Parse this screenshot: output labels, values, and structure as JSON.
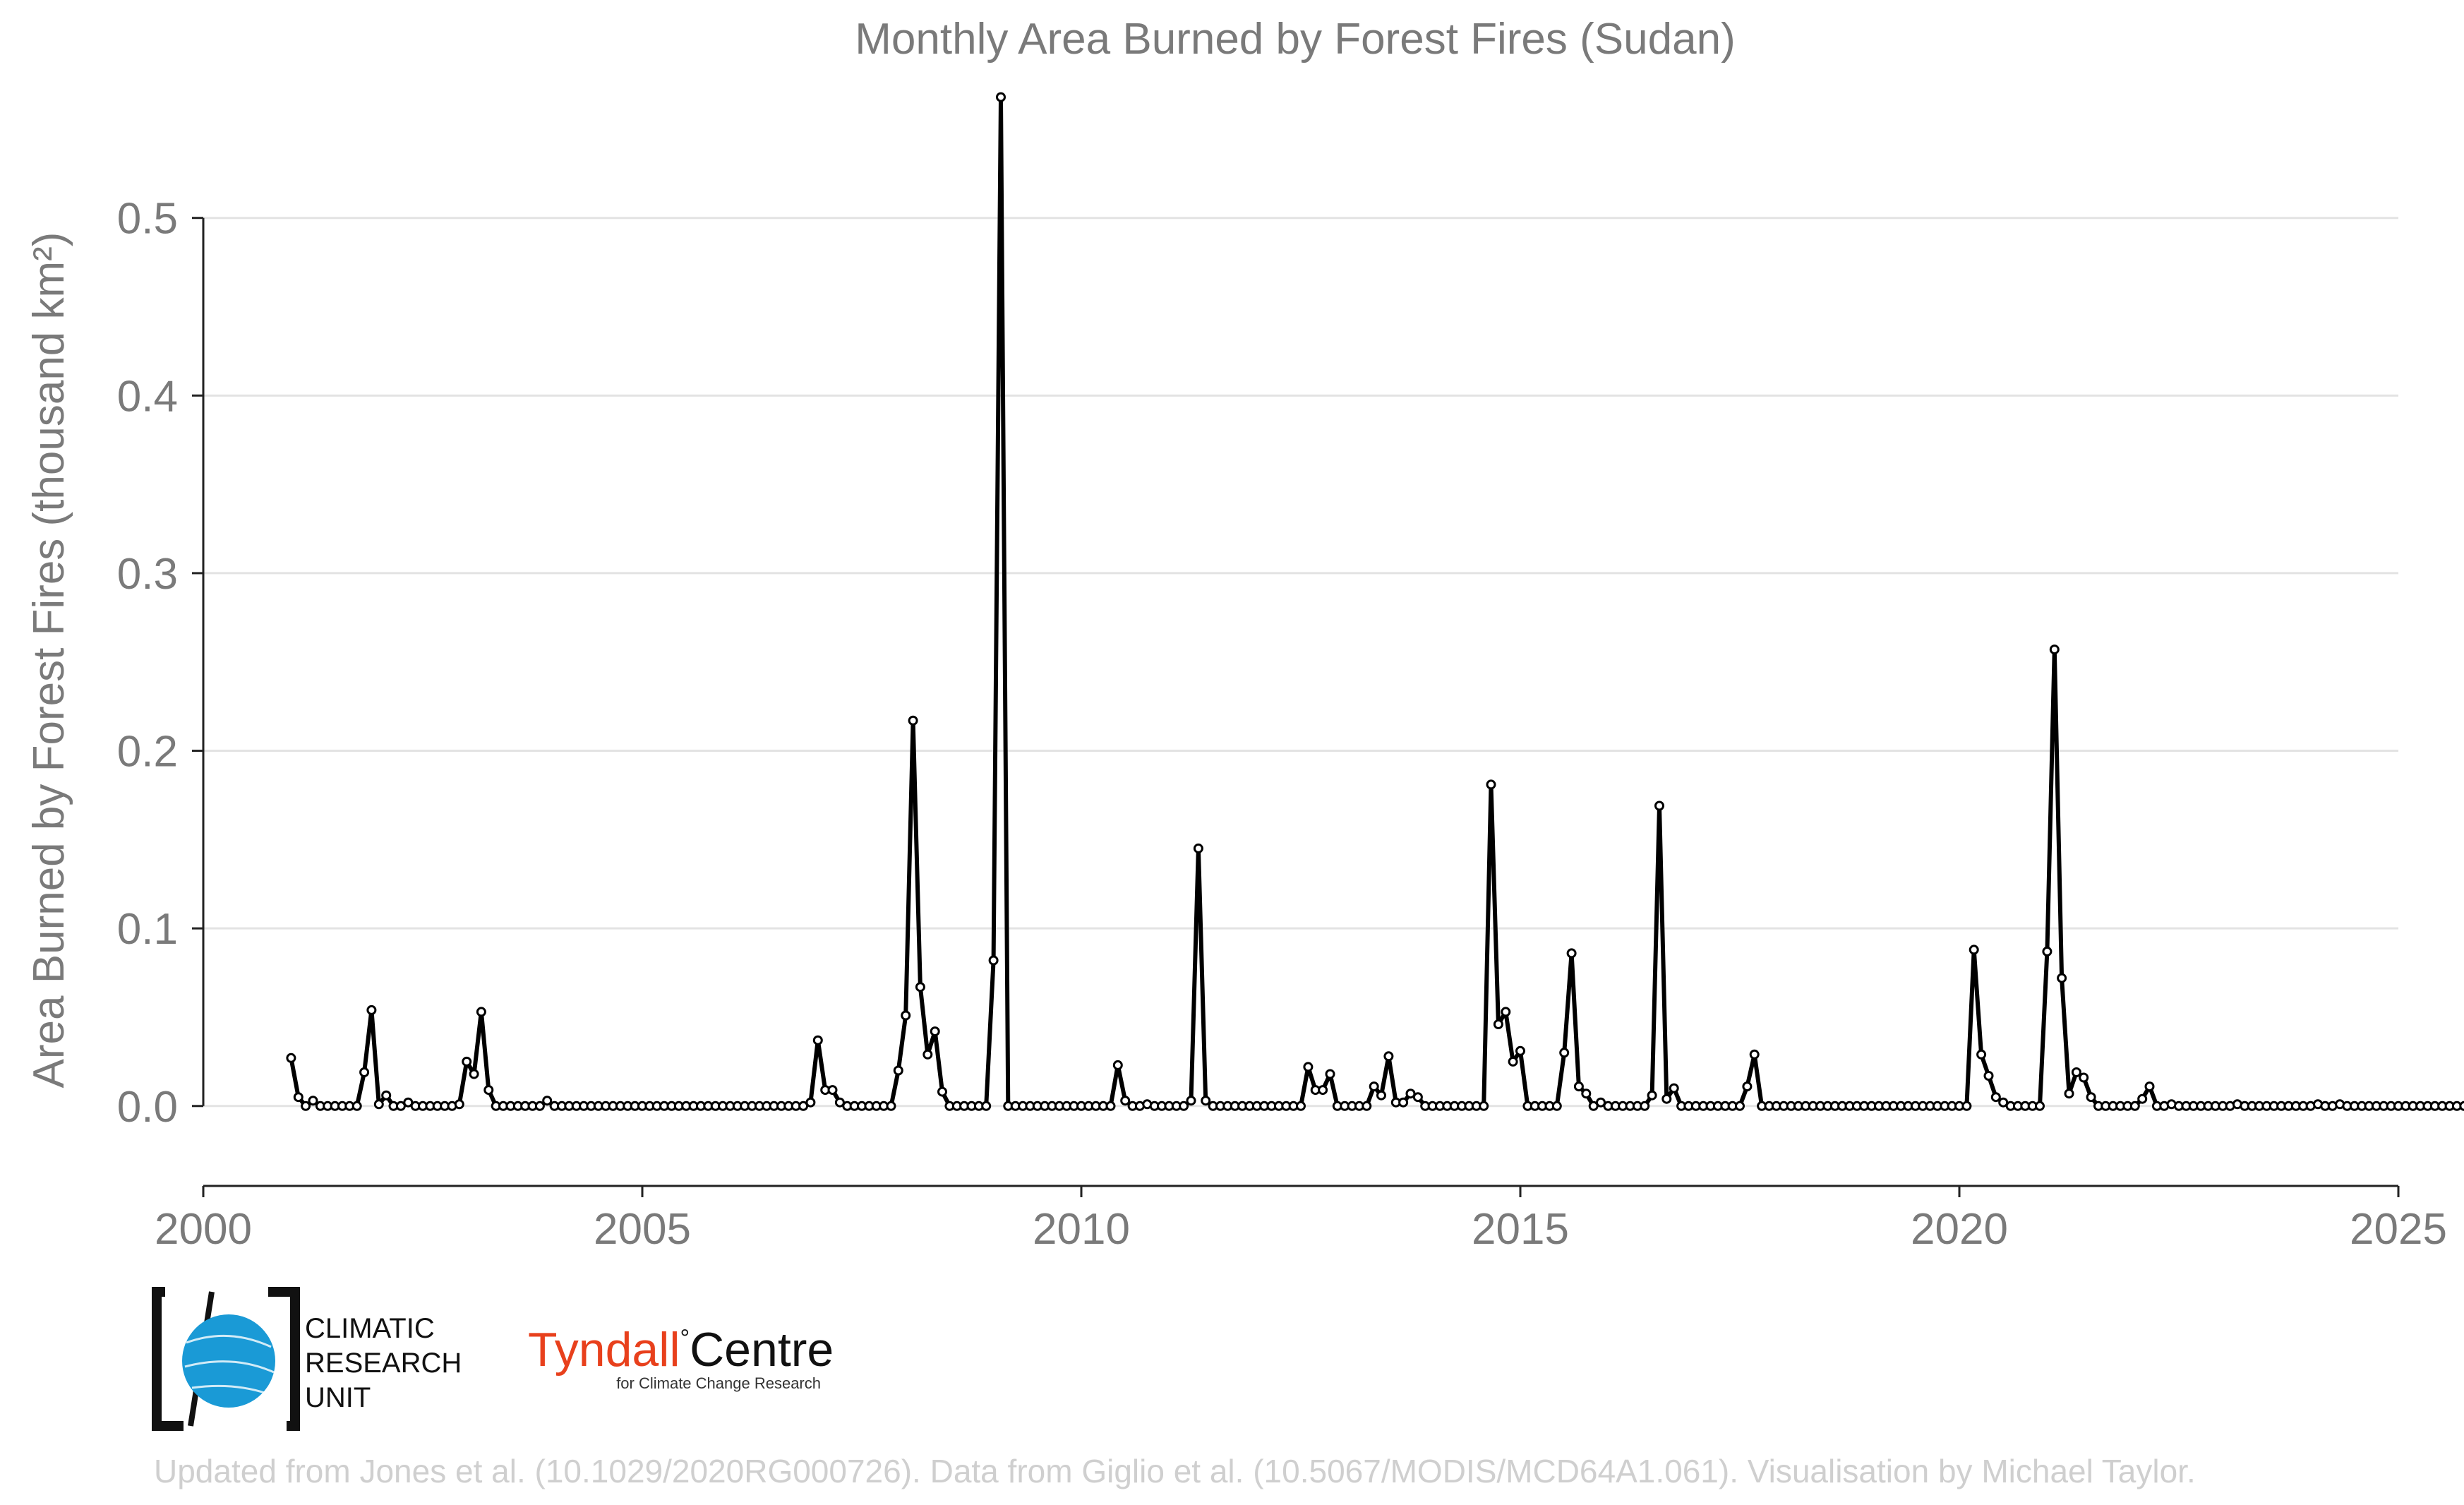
{
  "chart_data": {
    "type": "line",
    "title": "Monthly Area Burned by Forest Fires (Sudan)",
    "ylabel": "Area Burned by Forest Fires (thousand km²)",
    "xlabel": "",
    "xlim": [
      2000,
      2025
    ],
    "ylim": [
      -0.045,
      0.575
    ],
    "x_ticks": [
      2000,
      2005,
      2010,
      2015,
      2020,
      2025
    ],
    "y_ticks": [
      0.0,
      0.1,
      0.2,
      0.3,
      0.4,
      0.5
    ],
    "y_tick_labels": [
      "0.0",
      "0.1",
      "0.2",
      "0.3",
      "0.4",
      "0.5"
    ],
    "grid": "horizontal",
    "series_color": "#000000",
    "start": "2001-01",
    "frequency": "monthly",
    "values": [
      0.027,
      0.005,
      0.0,
      0.003,
      0.0,
      0.0,
      0.0,
      0.0,
      0.0,
      0.0,
      0.019,
      0.054,
      0.001,
      0.006,
      0.0,
      0.0,
      0.002,
      0.0,
      0.0,
      0.0,
      0.0,
      0.0,
      0.0,
      0.001,
      0.025,
      0.018,
      0.053,
      0.009,
      0.0,
      0.0,
      0.0,
      0.0,
      0.0,
      0.0,
      0.0,
      0.003,
      0.0,
      0.0,
      0.0,
      0.0,
      0.0,
      0.0,
      0.0,
      0.0,
      0.0,
      0.0,
      0.0,
      0.0,
      0.0,
      0.0,
      0.0,
      0.0,
      0.0,
      0.0,
      0.0,
      0.0,
      0.0,
      0.0,
      0.0,
      0.0,
      0.0,
      0.0,
      0.0,
      0.0,
      0.0,
      0.0,
      0.0,
      0.0,
      0.0,
      0.0,
      0.0,
      0.002,
      0.037,
      0.009,
      0.009,
      0.002,
      0.0,
      0.0,
      0.0,
      0.0,
      0.0,
      0.0,
      0.0,
      0.02,
      0.051,
      0.217,
      0.067,
      0.029,
      0.042,
      0.008,
      0.0,
      0.0,
      0.0,
      0.0,
      0.0,
      0.0,
      0.082,
      0.568,
      0.0,
      0.0,
      0.0,
      0.0,
      0.0,
      0.0,
      0.0,
      0.0,
      0.0,
      0.0,
      0.0,
      0.0,
      0.0,
      0.0,
      0.0,
      0.023,
      0.003,
      0.0,
      0.0,
      0.001,
      0.0,
      0.0,
      0.0,
      0.0,
      0.0,
      0.003,
      0.145,
      0.003,
      0.0,
      0.0,
      0.0,
      0.0,
      0.0,
      0.0,
      0.0,
      0.0,
      0.0,
      0.0,
      0.0,
      0.0,
      0.0,
      0.022,
      0.009,
      0.009,
      0.018,
      0.0,
      0.0,
      0.0,
      0.0,
      0.0,
      0.011,
      0.006,
      0.028,
      0.002,
      0.002,
      0.007,
      0.005,
      0.0,
      0.0,
      0.0,
      0.0,
      0.0,
      0.0,
      0.0,
      0.0,
      0.0,
      0.181,
      0.046,
      0.053,
      0.025,
      0.031,
      0.0,
      0.0,
      0.0,
      0.0,
      0.0,
      0.03,
      0.086,
      0.011,
      0.007,
      0.0,
      0.002,
      0.0,
      0.0,
      0.0,
      0.0,
      0.0,
      0.0,
      0.006,
      0.169,
      0.004,
      0.01,
      0.0,
      0.0,
      0.0,
      0.0,
      0.0,
      0.0,
      0.0,
      0.0,
      0.0,
      0.011,
      0.029,
      0.0,
      0.0,
      0.0,
      0.0,
      0.0,
      0.0,
      0.0,
      0.0,
      0.0,
      0.0,
      0.0,
      0.0,
      0.0,
      0.0,
      0.0,
      0.0,
      0.0,
      0.0,
      0.0,
      0.0,
      0.0,
      0.0,
      0.0,
      0.0,
      0.0,
      0.0,
      0.0,
      0.0,
      0.0,
      0.088,
      0.029,
      0.017,
      0.005,
      0.002,
      0.0,
      0.0,
      0.0,
      0.0,
      0.0,
      0.087,
      0.257,
      0.072,
      0.007,
      0.019,
      0.016,
      0.005,
      0.0,
      0.0,
      0.0,
      0.0,
      0.0,
      0.0,
      0.004,
      0.011,
      0.0,
      0.0,
      0.001,
      0.0,
      0.0,
      0.0,
      0.0,
      0.0,
      0.0,
      0.0,
      0.0,
      0.001,
      0.0,
      0.0,
      0.0,
      0.0,
      0.0,
      0.0,
      0.0,
      0.0,
      0.0,
      0.0,
      0.001,
      0.0,
      0.0,
      0.001,
      0.0,
      0.0,
      0.0,
      0.0,
      0.0,
      0.0,
      0.0,
      0.0,
      0.0,
      0.0,
      0.0,
      0.0,
      0.0,
      0.0,
      0.0,
      0.0,
      0.0,
      0.0,
      0.0,
      0.0,
      0.0,
      0.0,
      0.0,
      0.0,
      0.0
    ]
  },
  "logos": {
    "cru_lines": [
      "CLIMATIC",
      "RESEARCH",
      "UNIT"
    ],
    "cru_color": "#1a9ad6",
    "tyndall_name": "Tyndall",
    "tyndall_degree": "°",
    "tyndall_centre": "Centre",
    "tyndall_sub": "for Climate Change Research",
    "tyndall_color": "#e8401c"
  },
  "footer": "Updated from Jones et al. (10.1029/2020RG000726). Data from Giglio et al. (10.5067/MODIS/MCD64A1.061). Visualisation by Michael Taylor."
}
